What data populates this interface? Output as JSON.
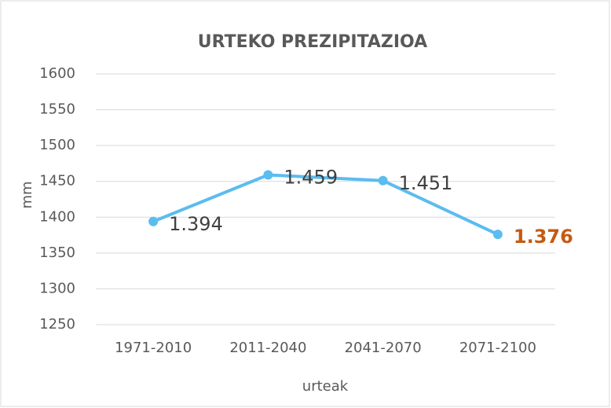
{
  "chart_data": {
    "type": "line",
    "title": "URTEKO PREZIPITAZIOA",
    "x_label": "urteak",
    "y_label": "mm",
    "categories": [
      "1971-2010",
      "2011-2040",
      "2041-2070",
      "2071-2100"
    ],
    "series": [
      {
        "name": "mm",
        "color": "#5bbcf0",
        "values": [
          1394,
          1459,
          1451,
          1376
        ],
        "value_labels": [
          "1.394",
          "1.459",
          "1.451",
          "1.376"
        ],
        "label_colors": [
          "#404040",
          "#404040",
          "#404040",
          "#c55a11"
        ],
        "label_bold": [
          false,
          false,
          false,
          true
        ]
      }
    ],
    "ylim": [
      1250,
      1600
    ],
    "yticks": [
      1250,
      1300,
      1350,
      1400,
      1450,
      1500,
      1550,
      1600
    ],
    "grid": true
  }
}
